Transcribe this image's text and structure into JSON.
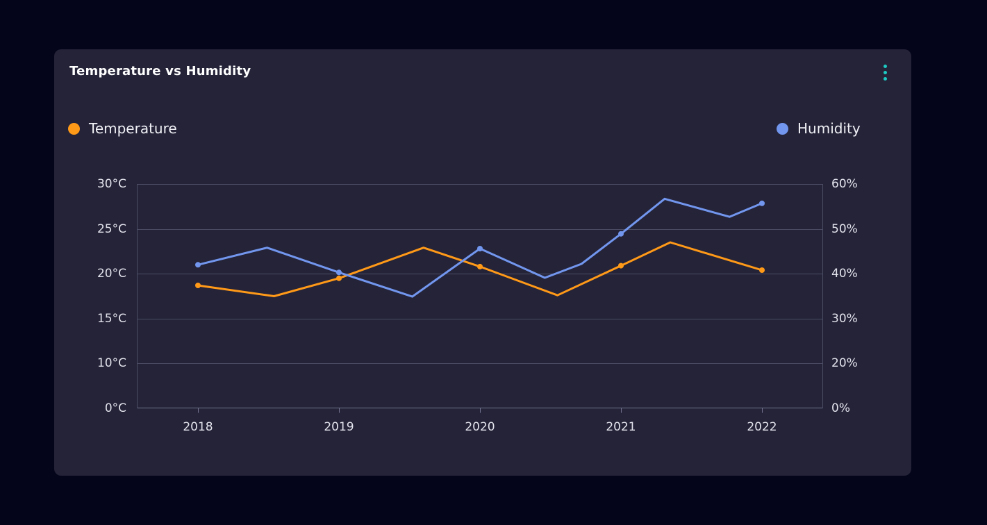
{
  "card": {
    "title": "Temperature vs Humidity",
    "menu_icon": "kebab-vertical-dots",
    "menu_color": "#1dc9c2"
  },
  "legend": [
    {
      "label": "Temperature",
      "color": "#ff9918"
    },
    {
      "label": "Humidity",
      "color": "#7296ee"
    }
  ],
  "colors": {
    "page_background": "#04041b",
    "card_background": "#242338",
    "gridline": "#4b4b64",
    "axis_line": "#72728e",
    "axis_text": "#e2e2ec",
    "title_text": "#ffffff",
    "temperature": "#ff9918",
    "humidity": "#7296ee",
    "menu_accent": "#1dc9c2"
  },
  "chart_data": {
    "type": "line",
    "title": "Temperature vs Humidity",
    "x_tick_labels": [
      "2018",
      "2019",
      "2020",
      "2021",
      "2022"
    ],
    "x_tick_values": [
      2018,
      2019,
      2020,
      2021,
      2022
    ],
    "x_range": [
      2018,
      2022
    ],
    "grid": true,
    "legend_position": "top",
    "left_axis": {
      "unit": "°C",
      "tick_labels": [
        "30°C",
        "25°C",
        "20°C",
        "15°C",
        "10°C",
        "0°C"
      ],
      "tick_values": [
        30,
        25,
        20,
        15,
        10,
        0
      ]
    },
    "right_axis": {
      "unit": "%",
      "tick_labels": [
        "60%",
        "50%",
        "40%",
        "30%",
        "20%",
        "0%"
      ],
      "tick_values": [
        60,
        50,
        40,
        30,
        20,
        0
      ]
    },
    "markers_on_integer_years_only": true,
    "series": [
      {
        "name": "Temperature",
        "axis": "left",
        "color": "#ff9918",
        "points": [
          {
            "x": 2018,
            "y": 18.7
          },
          {
            "x": 2018.54,
            "y": 17.5
          },
          {
            "x": 2019,
            "y": 19.5
          },
          {
            "x": 2019.6,
            "y": 22.9
          },
          {
            "x": 2020,
            "y": 20.8
          },
          {
            "x": 2020.55,
            "y": 17.6
          },
          {
            "x": 2021,
            "y": 20.9
          },
          {
            "x": 2021.35,
            "y": 23.5
          },
          {
            "x": 2022,
            "y": 20.4
          }
        ]
      },
      {
        "name": "Humidity",
        "axis": "right",
        "color": "#7296ee",
        "points": [
          {
            "x": 2018,
            "y": 42.0
          },
          {
            "x": 2018.49,
            "y": 45.8
          },
          {
            "x": 2019,
            "y": 40.3
          },
          {
            "x": 2019.52,
            "y": 34.9
          },
          {
            "x": 2020,
            "y": 45.6
          },
          {
            "x": 2020.46,
            "y": 39.1
          },
          {
            "x": 2020.72,
            "y": 42.2
          },
          {
            "x": 2021,
            "y": 48.9
          },
          {
            "x": 2021.31,
            "y": 56.7
          },
          {
            "x": 2021.77,
            "y": 52.7
          },
          {
            "x": 2022,
            "y": 55.7
          }
        ]
      }
    ]
  }
}
